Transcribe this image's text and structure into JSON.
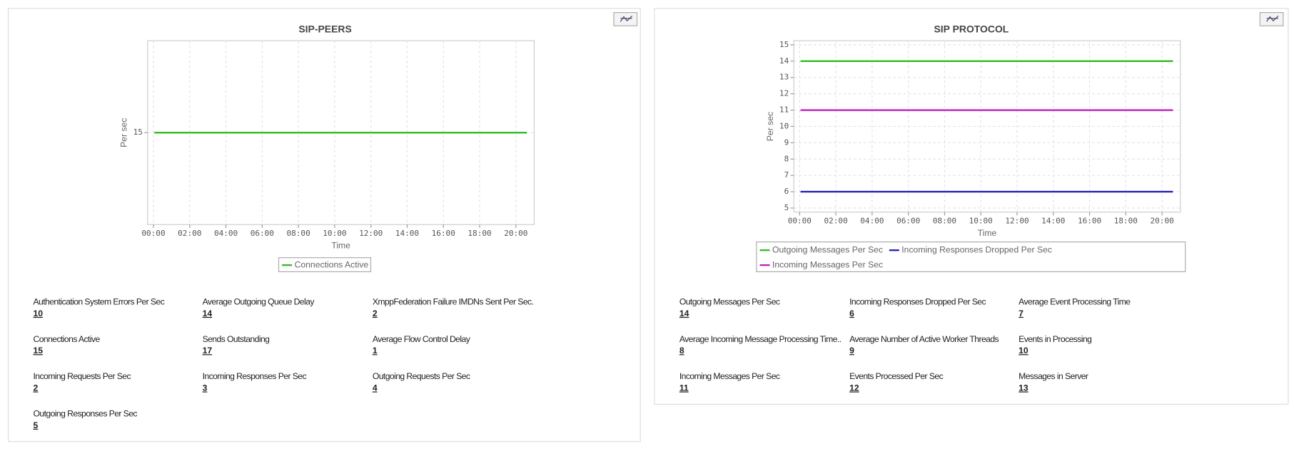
{
  "chart_data": [
    {
      "type": "line",
      "title": "SIP-PEERS",
      "x_label": "Time",
      "y_label": "Per sec",
      "xlim": [
        -0.32,
        21.01
      ],
      "xticks": [
        {
          "value": 0,
          "label": "00:00"
        },
        {
          "value": 2,
          "label": "02:00"
        },
        {
          "value": 4,
          "label": "04:00"
        },
        {
          "value": 6,
          "label": "06:00"
        },
        {
          "value": 8,
          "label": "08:00"
        },
        {
          "value": 10,
          "label": "10:00"
        },
        {
          "value": 12,
          "label": "12:00"
        },
        {
          "value": 14,
          "label": "14:00"
        },
        {
          "value": 16,
          "label": "16:00"
        },
        {
          "value": 18,
          "label": "18:00"
        },
        {
          "value": 20,
          "label": "20:00"
        }
      ],
      "ylim": [
        14,
        16
      ],
      "yticks": [
        15
      ],
      "grid": true,
      "x": [
        0.05,
        20.6
      ],
      "series": [
        {
          "name": "Connections Active",
          "color": "#33bb22",
          "values": [
            15,
            15
          ]
        }
      ]
    },
    {
      "type": "line",
      "title": "SIP PROTOCOL",
      "x_label": "Time",
      "y_label": "Per sec",
      "xlim": [
        -0.32,
        21.01
      ],
      "xticks": [
        {
          "value": 0,
          "label": "00:00"
        },
        {
          "value": 2,
          "label": "02:00"
        },
        {
          "value": 4,
          "label": "04:00"
        },
        {
          "value": 6,
          "label": "06:00"
        },
        {
          "value": 8,
          "label": "08:00"
        },
        {
          "value": 10,
          "label": "10:00"
        },
        {
          "value": 12,
          "label": "12:00"
        },
        {
          "value": 14,
          "label": "14:00"
        },
        {
          "value": 16,
          "label": "16:00"
        },
        {
          "value": 18,
          "label": "18:00"
        },
        {
          "value": 20,
          "label": "20:00"
        }
      ],
      "ylim": [
        4.75,
        15.25
      ],
      "yticks": [
        5,
        6,
        7,
        8,
        9,
        10,
        11,
        12,
        13,
        14,
        15
      ],
      "grid": true,
      "x": [
        0.05,
        20.6
      ],
      "series": [
        {
          "name": "Outgoing Messages Per Sec",
          "color": "#33bb22",
          "values": [
            14,
            14
          ]
        },
        {
          "name": "Incoming Responses Dropped Per Sec",
          "color": "#2222bb",
          "values": [
            6,
            6
          ]
        },
        {
          "name": "Incoming Messages Per Sec",
          "color": "#bb22bb",
          "values": [
            11,
            11
          ]
        }
      ]
    }
  ],
  "panels": [
    {
      "metrics": [
        {
          "label": "Authentication System Errors Per Sec",
          "value": 10
        },
        {
          "label": "Average Outgoing Queue Delay",
          "value": 14
        },
        {
          "label": "XmppFederation Failure IMDNs Sent Per Sec.",
          "value": 2
        },
        {
          "label": "Connections Active",
          "value": 15
        },
        {
          "label": "Sends Outstanding",
          "value": 17
        },
        {
          "label": "Average Flow Control Delay",
          "value": 1
        },
        {
          "label": "Incoming Requests Per Sec",
          "value": 2
        },
        {
          "label": "Incoming Responses Per Sec",
          "value": 3
        },
        {
          "label": "Outgoing Requests Per Sec",
          "value": 4
        },
        {
          "label": "Outgoing Responses Per Sec",
          "value": 5
        }
      ]
    },
    {
      "metrics": [
        {
          "label": "Outgoing Messages Per Sec",
          "value": 14
        },
        {
          "label": "Incoming Responses Dropped Per Sec",
          "value": 6
        },
        {
          "label": "Average Event Processing Time",
          "value": 7
        },
        {
          "label": "Average Incoming Message Processing Time..",
          "value": 8
        },
        {
          "label": "Average Number of Active Worker Threads",
          "value": 9
        },
        {
          "label": "Events in Processing",
          "value": 10
        },
        {
          "label": "Incoming Messages Per Sec",
          "value": 11
        },
        {
          "label": "Events Processed Per Sec",
          "value": 12
        },
        {
          "label": "Messages in Server",
          "value": 13
        }
      ]
    }
  ]
}
